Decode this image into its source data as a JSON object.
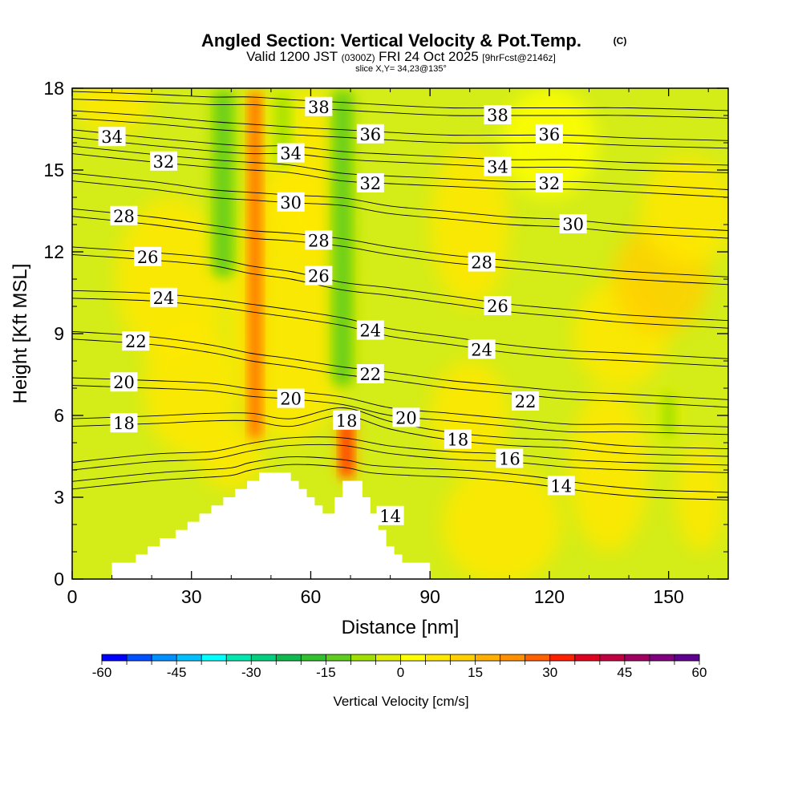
{
  "header": {
    "title": "Angled Section: Vertical Velocity & Pot.Temp.",
    "copyright": "(C)",
    "valid_prefix": "Valid 1200 JST",
    "valid_zulu": "(0300Z)",
    "valid_date": "FRI 24 Oct 2025",
    "forecast": "[9hrFcst@2146z]",
    "slice": "slice X,Y= 34,23@135°"
  },
  "chart_data": {
    "type": "contour",
    "xlabel": "Distance [nm]",
    "ylabel": "Height [Kft MSL]",
    "xlim": [
      0,
      165
    ],
    "ylim": [
      0,
      18
    ],
    "xticks": [
      0,
      30,
      60,
      90,
      120,
      150
    ],
    "yticks": [
      0,
      3,
      6,
      9,
      12,
      15,
      18
    ],
    "colorbar": {
      "label": "Vertical Velocity [cm/s]",
      "range": [
        -60,
        60
      ],
      "step": 5,
      "ticks": [
        -60,
        -45,
        -30,
        -15,
        0,
        15,
        30,
        45,
        60
      ],
      "colors": [
        "#0000ff",
        "#0050ff",
        "#0090ff",
        "#00c0ff",
        "#00ffff",
        "#00e8b0",
        "#00d080",
        "#10b850",
        "#30c030",
        "#60cc20",
        "#a0e000",
        "#e0f000",
        "#ffff00",
        "#ffe800",
        "#ffd000",
        "#ffb000",
        "#ff9000",
        "#ff6000",
        "#ff2000",
        "#e00020",
        "#c00040",
        "#a00060",
        "#800080",
        "#600090"
      ]
    },
    "terrain": [
      [
        0,
        0
      ],
      [
        10,
        0
      ],
      [
        10,
        0.6
      ],
      [
        16,
        0.6
      ],
      [
        16,
        0.9
      ],
      [
        19,
        0.9
      ],
      [
        19,
        1.2
      ],
      [
        22,
        1.2
      ],
      [
        22,
        1.5
      ],
      [
        26,
        1.5
      ],
      [
        26,
        1.8
      ],
      [
        29,
        1.8
      ],
      [
        29,
        2.1
      ],
      [
        32,
        2.1
      ],
      [
        32,
        2.4
      ],
      [
        35,
        2.4
      ],
      [
        35,
        2.7
      ],
      [
        38,
        2.7
      ],
      [
        38,
        3.0
      ],
      [
        41,
        3.0
      ],
      [
        41,
        3.3
      ],
      [
        44,
        3.3
      ],
      [
        44,
        3.6
      ],
      [
        47,
        3.6
      ],
      [
        47,
        3.9
      ],
      [
        55,
        3.9
      ],
      [
        55,
        3.6
      ],
      [
        57,
        3.6
      ],
      [
        57,
        3.3
      ],
      [
        59,
        3.3
      ],
      [
        59,
        3.0
      ],
      [
        61,
        3.0
      ],
      [
        61,
        2.7
      ],
      [
        63,
        2.7
      ],
      [
        63,
        2.4
      ],
      [
        66,
        2.4
      ],
      [
        66,
        3.0
      ],
      [
        68,
        3.0
      ],
      [
        68,
        3.6
      ],
      [
        73,
        3.6
      ],
      [
        73,
        3.0
      ],
      [
        75,
        3.0
      ],
      [
        75,
        2.4
      ],
      [
        77,
        2.4
      ],
      [
        77,
        1.8
      ],
      [
        79,
        1.8
      ],
      [
        79,
        1.2
      ],
      [
        81,
        1.2
      ],
      [
        81,
        0.9
      ],
      [
        83,
        0.9
      ],
      [
        83,
        0.6
      ],
      [
        90,
        0.6
      ],
      [
        90,
        0
      ]
    ],
    "isentropes": [
      {
        "level": 14,
        "points": [
          [
            0,
            3.3
          ],
          [
            20,
            3.6
          ],
          [
            30,
            3.7
          ],
          [
            40,
            3.8
          ],
          [
            45,
            4.0
          ],
          [
            55,
            4.2
          ],
          [
            68,
            4.1
          ],
          [
            75,
            3.9
          ],
          [
            85,
            3.8
          ],
          [
            100,
            3.7
          ],
          [
            115,
            3.5
          ],
          [
            130,
            3.2
          ],
          [
            145,
            3.0
          ],
          [
            165,
            2.9
          ]
        ]
      },
      {
        "level": 16,
        "points": [
          [
            0,
            4.0
          ],
          [
            20,
            4.3
          ],
          [
            35,
            4.4
          ],
          [
            45,
            4.7
          ],
          [
            55,
            4.9
          ],
          [
            68,
            4.9
          ],
          [
            80,
            4.6
          ],
          [
            95,
            4.4
          ],
          [
            110,
            4.3
          ],
          [
            125,
            4.1
          ],
          [
            140,
            4.0
          ],
          [
            165,
            3.9
          ]
        ]
      },
      {
        "level": 18,
        "points": [
          [
            0,
            5.6
          ],
          [
            20,
            5.7
          ],
          [
            35,
            5.8
          ],
          [
            45,
            5.8
          ],
          [
            55,
            5.6
          ],
          [
            68,
            6.0
          ],
          [
            80,
            5.5
          ],
          [
            95,
            5.1
          ],
          [
            110,
            4.9
          ],
          [
            125,
            4.8
          ],
          [
            140,
            4.6
          ],
          [
            165,
            4.5
          ]
        ]
      },
      {
        "level": 20,
        "points": [
          [
            0,
            7.1
          ],
          [
            20,
            7.0
          ],
          [
            35,
            6.9
          ],
          [
            45,
            6.7
          ],
          [
            55,
            6.6
          ],
          [
            68,
            6.4
          ],
          [
            80,
            6.0
          ],
          [
            95,
            5.8
          ],
          [
            110,
            5.6
          ],
          [
            125,
            5.4
          ],
          [
            140,
            5.4
          ],
          [
            165,
            5.3
          ]
        ]
      },
      {
        "level": 22,
        "points": [
          [
            0,
            8.8
          ],
          [
            20,
            8.6
          ],
          [
            35,
            8.3
          ],
          [
            45,
            8.0
          ],
          [
            55,
            7.8
          ],
          [
            68,
            7.5
          ],
          [
            80,
            7.3
          ],
          [
            95,
            7.0
          ],
          [
            110,
            6.8
          ],
          [
            125,
            6.6
          ],
          [
            140,
            6.5
          ],
          [
            165,
            6.3
          ]
        ]
      },
      {
        "level": 24,
        "points": [
          [
            0,
            10.3
          ],
          [
            20,
            10.2
          ],
          [
            35,
            10.0
          ],
          [
            45,
            9.8
          ],
          [
            55,
            9.6
          ],
          [
            68,
            9.3
          ],
          [
            80,
            8.9
          ],
          [
            95,
            8.6
          ],
          [
            110,
            8.3
          ],
          [
            125,
            8.1
          ],
          [
            140,
            8.0
          ],
          [
            165,
            7.8
          ]
        ]
      },
      {
        "level": 26,
        "points": [
          [
            0,
            11.9
          ],
          [
            20,
            11.7
          ],
          [
            35,
            11.5
          ],
          [
            45,
            11.2
          ],
          [
            55,
            11.0
          ],
          [
            68,
            10.6
          ],
          [
            80,
            10.4
          ],
          [
            95,
            10.1
          ],
          [
            110,
            9.8
          ],
          [
            125,
            9.6
          ],
          [
            140,
            9.4
          ],
          [
            165,
            9.2
          ]
        ]
      },
      {
        "level": 28,
        "points": [
          [
            0,
            13.3
          ],
          [
            20,
            13.0
          ],
          [
            35,
            12.7
          ],
          [
            45,
            12.5
          ],
          [
            55,
            12.4
          ],
          [
            68,
            12.2
          ],
          [
            80,
            11.9
          ],
          [
            95,
            11.6
          ],
          [
            110,
            11.4
          ],
          [
            125,
            11.2
          ],
          [
            140,
            11.0
          ],
          [
            165,
            10.8
          ]
        ]
      },
      {
        "level": 30,
        "points": [
          [
            0,
            14.6
          ],
          [
            20,
            14.3
          ],
          [
            35,
            14.0
          ],
          [
            45,
            13.9
          ],
          [
            55,
            13.8
          ],
          [
            68,
            13.7
          ],
          [
            80,
            13.4
          ],
          [
            95,
            13.2
          ],
          [
            110,
            13.0
          ],
          [
            125,
            12.9
          ],
          [
            140,
            12.7
          ],
          [
            165,
            12.5
          ]
        ]
      },
      {
        "level": 32,
        "points": [
          [
            0,
            15.6
          ],
          [
            20,
            15.3
          ],
          [
            35,
            15.1
          ],
          [
            45,
            15.0
          ],
          [
            55,
            14.9
          ],
          [
            68,
            14.6
          ],
          [
            80,
            14.5
          ],
          [
            95,
            14.4
          ],
          [
            110,
            14.3
          ],
          [
            125,
            14.3
          ],
          [
            140,
            14.2
          ],
          [
            165,
            14.0
          ]
        ]
      },
      {
        "level": 34,
        "points": [
          [
            0,
            16.2
          ],
          [
            20,
            15.9
          ],
          [
            35,
            15.7
          ],
          [
            45,
            15.6
          ],
          [
            55,
            15.6
          ],
          [
            68,
            15.4
          ],
          [
            80,
            15.3
          ],
          [
            95,
            15.2
          ],
          [
            110,
            15.1
          ],
          [
            125,
            15.1
          ],
          [
            140,
            15.0
          ],
          [
            165,
            14.9
          ]
        ]
      },
      {
        "level": 36,
        "points": [
          [
            0,
            16.9
          ],
          [
            20,
            16.7
          ],
          [
            35,
            16.5
          ],
          [
            45,
            16.4
          ],
          [
            55,
            16.3
          ],
          [
            68,
            16.2
          ],
          [
            80,
            16.1
          ],
          [
            95,
            16.0
          ],
          [
            110,
            16.0
          ],
          [
            125,
            16.0
          ],
          [
            140,
            15.9
          ],
          [
            165,
            15.8
          ]
        ]
      },
      {
        "level": 38,
        "points": [
          [
            0,
            17.6
          ],
          [
            20,
            17.5
          ],
          [
            35,
            17.4
          ],
          [
            45,
            17.4
          ],
          [
            55,
            17.3
          ],
          [
            68,
            17.2
          ],
          [
            80,
            17.1
          ],
          [
            95,
            17.0
          ],
          [
            110,
            17.0
          ],
          [
            125,
            17.0
          ],
          [
            140,
            17.0
          ],
          [
            165,
            16.9
          ]
        ]
      }
    ],
    "isentrope_labels": [
      {
        "text": "38",
        "x": 62,
        "y": 17.3
      },
      {
        "text": "38",
        "x": 107,
        "y": 17.0
      },
      {
        "text": "34",
        "x": 10,
        "y": 16.2
      },
      {
        "text": "36",
        "x": 75,
        "y": 16.3
      },
      {
        "text": "36",
        "x": 120,
        "y": 16.3
      },
      {
        "text": "34",
        "x": 55,
        "y": 15.6
      },
      {
        "text": "34",
        "x": 107,
        "y": 15.1
      },
      {
        "text": "32",
        "x": 23,
        "y": 15.3
      },
      {
        "text": "32",
        "x": 75,
        "y": 14.5
      },
      {
        "text": "32",
        "x": 120,
        "y": 14.5
      },
      {
        "text": "30",
        "x": 55,
        "y": 13.8
      },
      {
        "text": "30",
        "x": 126,
        "y": 13.0
      },
      {
        "text": "28",
        "x": 13,
        "y": 13.3
      },
      {
        "text": "28",
        "x": 62,
        "y": 12.4
      },
      {
        "text": "28",
        "x": 103,
        "y": 11.6
      },
      {
        "text": "26",
        "x": 19,
        "y": 11.8
      },
      {
        "text": "26",
        "x": 62,
        "y": 11.1
      },
      {
        "text": "26",
        "x": 107,
        "y": 10.0
      },
      {
        "text": "24",
        "x": 23,
        "y": 10.3
      },
      {
        "text": "24",
        "x": 75,
        "y": 9.1
      },
      {
        "text": "24",
        "x": 103,
        "y": 8.4
      },
      {
        "text": "22",
        "x": 16,
        "y": 8.7
      },
      {
        "text": "22",
        "x": 75,
        "y": 7.5
      },
      {
        "text": "22",
        "x": 114,
        "y": 6.5
      },
      {
        "text": "20",
        "x": 13,
        "y": 7.2
      },
      {
        "text": "20",
        "x": 55,
        "y": 6.6
      },
      {
        "text": "20",
        "x": 84,
        "y": 5.9
      },
      {
        "text": "18",
        "x": 13,
        "y": 5.7
      },
      {
        "text": "18",
        "x": 69,
        "y": 5.8
      },
      {
        "text": "18",
        "x": 97,
        "y": 5.1
      },
      {
        "text": "16",
        "x": 110,
        "y": 4.4
      },
      {
        "text": "14",
        "x": 123,
        "y": 3.4
      },
      {
        "text": "14",
        "x": 80,
        "y": 2.3
      }
    ],
    "velocity_features": [
      {
        "type": "updraft",
        "x": 46,
        "y": [
          5,
          18
        ],
        "peak": 25
      },
      {
        "type": "updraft",
        "x": 69,
        "y": [
          3.6,
          6
        ],
        "peak": 30
      },
      {
        "type": "downdraft",
        "x": 38,
        "y": [
          11,
          18
        ],
        "peak": -15
      },
      {
        "type": "downdraft",
        "x": 53,
        "y": [
          15,
          18
        ],
        "peak": -10
      },
      {
        "type": "downdraft",
        "x": 68,
        "y": [
          7,
          18
        ],
        "peak": -15
      },
      {
        "type": "downdraft",
        "x": 150,
        "y": [
          5,
          7
        ],
        "peak": -10
      }
    ]
  }
}
